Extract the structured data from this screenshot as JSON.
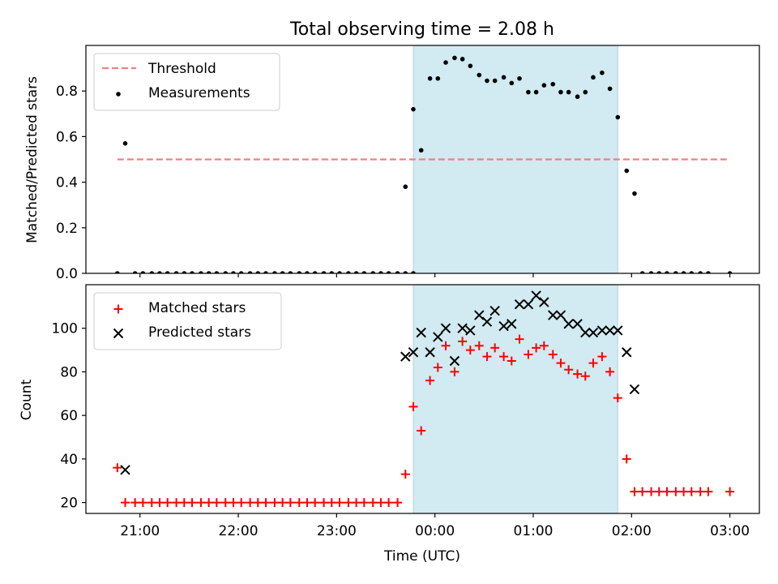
{
  "chart_data": [
    {
      "type": "scatter",
      "title": "Total observing time = 2.08 h",
      "xlabel": "",
      "ylabel": "Matched/Predicted stars",
      "x_unit": "hours relative to 00:00 UTC",
      "xlim": [
        -3.55,
        3.3
      ],
      "ylim": [
        0,
        1.0
      ],
      "yticks": [
        "0.0",
        "0.2",
        "0.4",
        "0.6",
        "0.8"
      ],
      "shaded_interval": [
        -0.22,
        1.86
      ],
      "shade_color": "#add8e6",
      "threshold": {
        "name": "Threshold",
        "value": 0.5,
        "x_range": [
          -3.23,
          3.0
        ],
        "color": "#f08080",
        "style": "dashed"
      },
      "legend_position": "upper left",
      "series": [
        {
          "name": "Measurements",
          "color": "#000000",
          "marker": "dot",
          "x": [
            -3.23,
            -3.15,
            -3.05,
            -2.97,
            -2.88,
            -2.8,
            -2.72,
            -2.63,
            -2.55,
            -2.47,
            -2.38,
            -2.3,
            -2.22,
            -2.13,
            -2.05,
            -1.97,
            -1.88,
            -1.8,
            -1.72,
            -1.63,
            -1.55,
            -1.47,
            -1.38,
            -1.3,
            -1.22,
            -1.13,
            -1.05,
            -0.97,
            -0.88,
            -0.8,
            -0.72,
            -0.63,
            -0.55,
            -0.47,
            -0.38,
            -0.3,
            -0.22,
            -0.3,
            -0.22,
            -0.14,
            -0.05,
            0.03,
            0.11,
            0.2,
            0.28,
            0.36,
            0.45,
            0.53,
            0.61,
            0.7,
            0.78,
            0.86,
            0.95,
            1.03,
            1.11,
            1.2,
            1.28,
            1.36,
            1.45,
            1.53,
            1.61,
            1.7,
            1.78,
            1.86,
            1.95,
            2.03,
            2.11,
            2.2,
            2.28,
            2.36,
            2.45,
            2.53,
            2.61,
            2.7,
            2.78,
            3.0
          ],
          "y": [
            0.0,
            0.57,
            0.0,
            0.0,
            0.0,
            0.0,
            0.0,
            0.0,
            0.0,
            0.0,
            0.0,
            0.0,
            0.0,
            0.0,
            0.0,
            0.0,
            0.0,
            0.0,
            0.0,
            0.0,
            0.0,
            0.0,
            0.0,
            0.0,
            0.0,
            0.0,
            0.0,
            0.0,
            0.0,
            0.0,
            0.0,
            0.0,
            0.0,
            0.0,
            0.0,
            0.0,
            0.0,
            0.38,
            0.72,
            0.54,
            0.855,
            0.855,
            0.925,
            0.945,
            0.94,
            0.91,
            0.87,
            0.845,
            0.845,
            0.86,
            0.835,
            0.855,
            0.795,
            0.795,
            0.825,
            0.83,
            0.795,
            0.795,
            0.775,
            0.795,
            0.86,
            0.88,
            0.81,
            0.685,
            0.45,
            0.35,
            0.0,
            0.0,
            0.0,
            0.0,
            0.0,
            0.0,
            0.0,
            0.0,
            0.0,
            0.0
          ]
        }
      ]
    },
    {
      "type": "scatter",
      "title": "",
      "xlabel": "Time (UTC)",
      "ylabel": "Count",
      "x_unit": "hours relative to 00:00 UTC",
      "xlim": [
        -3.55,
        3.3
      ],
      "ylim": [
        15,
        120
      ],
      "yticks": [
        "20",
        "40",
        "60",
        "80",
        "100"
      ],
      "xticks": [
        {
          "value": -3,
          "label": "21:00"
        },
        {
          "value": -2,
          "label": "22:00"
        },
        {
          "value": -1,
          "label": "23:00"
        },
        {
          "value": 0,
          "label": "00:00"
        },
        {
          "value": 1,
          "label": "01:00"
        },
        {
          "value": 2,
          "label": "02:00"
        },
        {
          "value": 3,
          "label": "03:00"
        }
      ],
      "shaded_interval": [
        -0.22,
        1.86
      ],
      "shade_color": "#add8e6",
      "legend_position": "upper left",
      "series": [
        {
          "name": "Matched stars",
          "color": "#ff0000",
          "marker": "plus",
          "x": [
            -3.23,
            -3.15,
            -3.05,
            -2.97,
            -2.88,
            -2.8,
            -2.72,
            -2.63,
            -2.55,
            -2.47,
            -2.38,
            -2.3,
            -2.22,
            -2.13,
            -2.05,
            -1.97,
            -1.88,
            -1.8,
            -1.72,
            -1.63,
            -1.55,
            -1.47,
            -1.38,
            -1.3,
            -1.22,
            -1.13,
            -1.05,
            -0.97,
            -0.88,
            -0.8,
            -0.72,
            -0.63,
            -0.55,
            -0.47,
            -0.38,
            -0.3,
            -0.22,
            -0.14,
            -0.05,
            0.03,
            0.11,
            0.2,
            0.28,
            0.36,
            0.45,
            0.53,
            0.61,
            0.7,
            0.78,
            0.86,
            0.95,
            1.03,
            1.11,
            1.2,
            1.28,
            1.36,
            1.45,
            1.53,
            1.61,
            1.7,
            1.78,
            1.86,
            1.95,
            2.03,
            2.11,
            2.2,
            2.28,
            2.36,
            2.45,
            2.53,
            2.61,
            2.7,
            2.78,
            3.0
          ],
          "y": [
            36,
            20,
            20,
            20,
            20,
            20,
            20,
            20,
            20,
            20,
            20,
            20,
            20,
            20,
            20,
            20,
            20,
            20,
            20,
            20,
            20,
            20,
            20,
            20,
            20,
            20,
            20,
            20,
            20,
            20,
            20,
            20,
            20,
            20,
            20,
            33,
            64,
            53,
            76,
            82,
            92,
            80,
            94,
            90,
            92,
            87,
            91,
            87,
            85,
            95,
            88,
            91,
            92,
            88,
            84,
            81,
            79,
            78,
            84,
            87,
            80,
            68,
            40,
            25,
            25,
            25,
            25,
            25,
            25,
            25,
            25,
            25,
            25,
            25
          ]
        },
        {
          "name": "Predicted stars",
          "color": "#000000",
          "marker": "x",
          "x": [
            -3.15,
            -0.3,
            -0.22,
            -0.14,
            -0.05,
            0.03,
            0.11,
            0.2,
            0.28,
            0.36,
            0.45,
            0.53,
            0.61,
            0.7,
            0.78,
            0.86,
            0.95,
            1.03,
            1.11,
            1.2,
            1.28,
            1.36,
            1.45,
            1.53,
            1.61,
            1.7,
            1.78,
            1.86,
            1.95,
            2.03
          ],
          "y": [
            35,
            87,
            89,
            98,
            89,
            96,
            100,
            85,
            100,
            99,
            106,
            103,
            108,
            101,
            102,
            111,
            111,
            115,
            112,
            106,
            106,
            102,
            102,
            98,
            98,
            99,
            99,
            99,
            89,
            72
          ]
        }
      ]
    }
  ]
}
